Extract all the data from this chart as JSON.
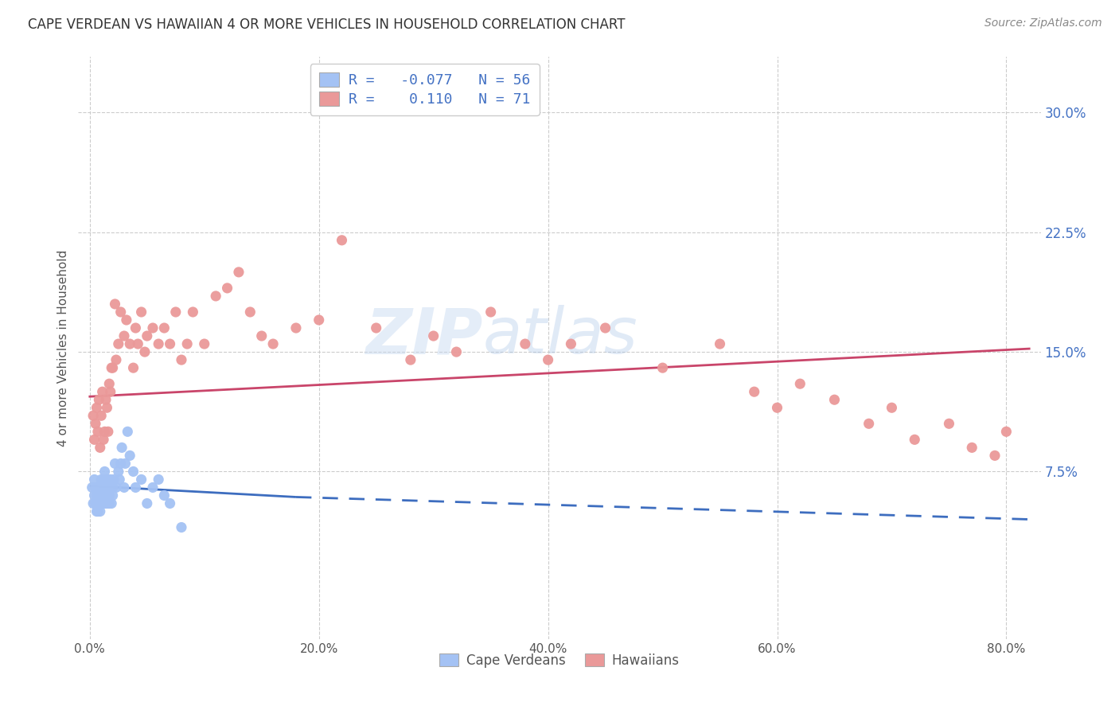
{
  "title": "CAPE VERDEAN VS HAWAIIAN 4 OR MORE VEHICLES IN HOUSEHOLD CORRELATION CHART",
  "source": "Source: ZipAtlas.com",
  "xlabel_ticks": [
    "0.0%",
    "20.0%",
    "40.0%",
    "60.0%",
    "80.0%"
  ],
  "xlabel_tick_vals": [
    0.0,
    0.2,
    0.4,
    0.6,
    0.8
  ],
  "ylabel_ticks": [
    "7.5%",
    "15.0%",
    "22.5%",
    "30.0%"
  ],
  "ylabel_tick_vals": [
    0.075,
    0.15,
    0.225,
    0.3
  ],
  "ylabel": "4 or more Vehicles in Household",
  "xlim": [
    -0.01,
    0.83
  ],
  "ylim": [
    -0.03,
    0.335
  ],
  "legend_r_blue": "-0.077",
  "legend_n_blue": "56",
  "legend_r_pink": "0.110",
  "legend_n_pink": "71",
  "blue_color": "#a4c2f4",
  "pink_color": "#ea9999",
  "blue_line_color": "#3d6dbf",
  "pink_line_color": "#c9456a",
  "watermark": "ZIPatlas",
  "cape_verdean_x": [
    0.002,
    0.003,
    0.004,
    0.004,
    0.005,
    0.005,
    0.006,
    0.006,
    0.007,
    0.007,
    0.007,
    0.008,
    0.008,
    0.009,
    0.009,
    0.01,
    0.01,
    0.011,
    0.011,
    0.012,
    0.012,
    0.013,
    0.013,
    0.014,
    0.014,
    0.015,
    0.015,
    0.016,
    0.016,
    0.017,
    0.017,
    0.018,
    0.018,
    0.019,
    0.02,
    0.02,
    0.021,
    0.022,
    0.023,
    0.025,
    0.026,
    0.027,
    0.028,
    0.03,
    0.031,
    0.033,
    0.035,
    0.038,
    0.04,
    0.045,
    0.05,
    0.055,
    0.06,
    0.065,
    0.07,
    0.08
  ],
  "cape_verdean_y": [
    0.065,
    0.055,
    0.06,
    0.07,
    0.055,
    0.065,
    0.05,
    0.06,
    0.05,
    0.055,
    0.065,
    0.055,
    0.06,
    0.05,
    0.065,
    0.06,
    0.07,
    0.055,
    0.065,
    0.06,
    0.07,
    0.055,
    0.075,
    0.06,
    0.065,
    0.055,
    0.07,
    0.06,
    0.065,
    0.055,
    0.06,
    0.065,
    0.07,
    0.055,
    0.06,
    0.065,
    0.07,
    0.08,
    0.065,
    0.075,
    0.07,
    0.08,
    0.09,
    0.065,
    0.08,
    0.1,
    0.085,
    0.075,
    0.065,
    0.07,
    0.055,
    0.065,
    0.07,
    0.06,
    0.055,
    0.04
  ],
  "hawaiian_x": [
    0.003,
    0.004,
    0.005,
    0.006,
    0.007,
    0.008,
    0.009,
    0.01,
    0.011,
    0.012,
    0.013,
    0.014,
    0.015,
    0.016,
    0.017,
    0.018,
    0.019,
    0.02,
    0.022,
    0.023,
    0.025,
    0.027,
    0.03,
    0.032,
    0.035,
    0.038,
    0.04,
    0.042,
    0.045,
    0.048,
    0.05,
    0.055,
    0.06,
    0.065,
    0.07,
    0.075,
    0.08,
    0.085,
    0.09,
    0.1,
    0.11,
    0.12,
    0.13,
    0.14,
    0.15,
    0.16,
    0.18,
    0.2,
    0.22,
    0.25,
    0.28,
    0.3,
    0.32,
    0.35,
    0.38,
    0.4,
    0.42,
    0.45,
    0.5,
    0.55,
    0.58,
    0.6,
    0.62,
    0.65,
    0.68,
    0.7,
    0.72,
    0.75,
    0.77,
    0.79,
    0.8
  ],
  "hawaiian_y": [
    0.11,
    0.095,
    0.105,
    0.115,
    0.1,
    0.12,
    0.09,
    0.11,
    0.125,
    0.095,
    0.1,
    0.12,
    0.115,
    0.1,
    0.13,
    0.125,
    0.14,
    0.14,
    0.18,
    0.145,
    0.155,
    0.175,
    0.16,
    0.17,
    0.155,
    0.14,
    0.165,
    0.155,
    0.175,
    0.15,
    0.16,
    0.165,
    0.155,
    0.165,
    0.155,
    0.175,
    0.145,
    0.155,
    0.175,
    0.155,
    0.185,
    0.19,
    0.2,
    0.175,
    0.16,
    0.155,
    0.165,
    0.17,
    0.22,
    0.165,
    0.145,
    0.16,
    0.15,
    0.175,
    0.155,
    0.145,
    0.155,
    0.165,
    0.14,
    0.155,
    0.125,
    0.115,
    0.13,
    0.12,
    0.105,
    0.115,
    0.095,
    0.105,
    0.09,
    0.085,
    0.1
  ],
  "blue_line_start_x": 0.0,
  "blue_line_solid_end_x": 0.18,
  "blue_line_dashed_end_x": 0.82,
  "blue_line_start_y": 0.066,
  "blue_line_solid_end_y": 0.059,
  "blue_line_dashed_end_y": 0.045,
  "pink_line_start_x": 0.0,
  "pink_line_end_x": 0.82,
  "pink_line_start_y": 0.122,
  "pink_line_end_y": 0.152
}
